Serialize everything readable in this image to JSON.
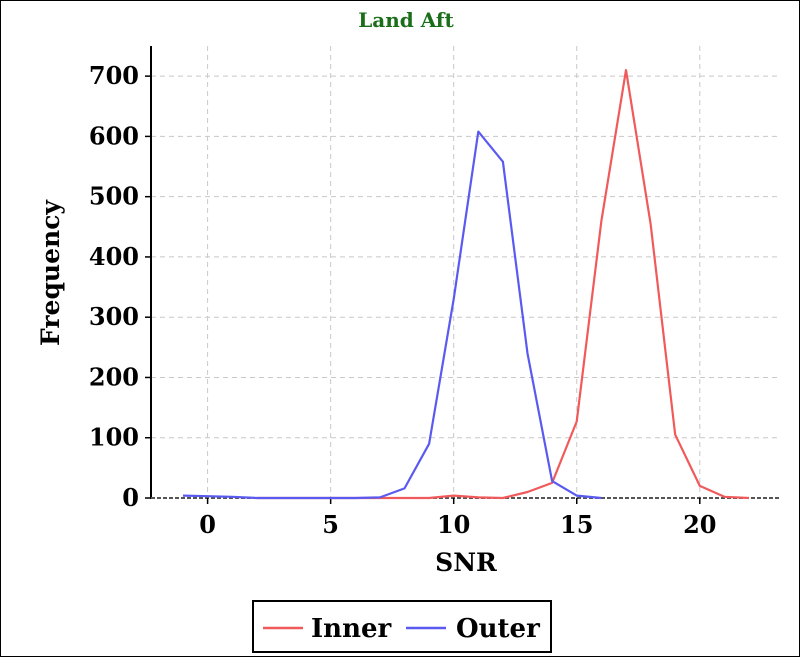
{
  "chart_data": {
    "type": "line",
    "title": "Land Aft",
    "xlabel": "SNR",
    "ylabel": "Frequency",
    "xlim": [
      -2.3,
      23.3
    ],
    "ylim": [
      0,
      750
    ],
    "xticks": [
      0,
      5,
      10,
      15,
      20
    ],
    "yticks": [
      0,
      100,
      200,
      300,
      400,
      500,
      600,
      700
    ],
    "grid": true,
    "legend_position": "bottom-center",
    "x": [
      -1,
      0,
      1,
      2,
      3,
      4,
      5,
      6,
      7,
      8,
      9,
      10,
      11,
      12,
      13,
      14,
      15,
      16,
      17,
      18,
      19,
      20,
      21,
      22
    ],
    "series": [
      {
        "name": "Inner",
        "color": "#f05a5a",
        "values": [
          null,
          null,
          null,
          0,
          0,
          0,
          0,
          0,
          0,
          0,
          0,
          4,
          1,
          0,
          10,
          25,
          127,
          460,
          710,
          455,
          105,
          20,
          2,
          0
        ]
      },
      {
        "name": "Outer",
        "color": "#5a5af0",
        "values": [
          4,
          3,
          2,
          0,
          0,
          0,
          0,
          0,
          1,
          16,
          90,
          330,
          608,
          558,
          240,
          28,
          4,
          0,
          null,
          null,
          null,
          null,
          null,
          null
        ]
      }
    ]
  }
}
